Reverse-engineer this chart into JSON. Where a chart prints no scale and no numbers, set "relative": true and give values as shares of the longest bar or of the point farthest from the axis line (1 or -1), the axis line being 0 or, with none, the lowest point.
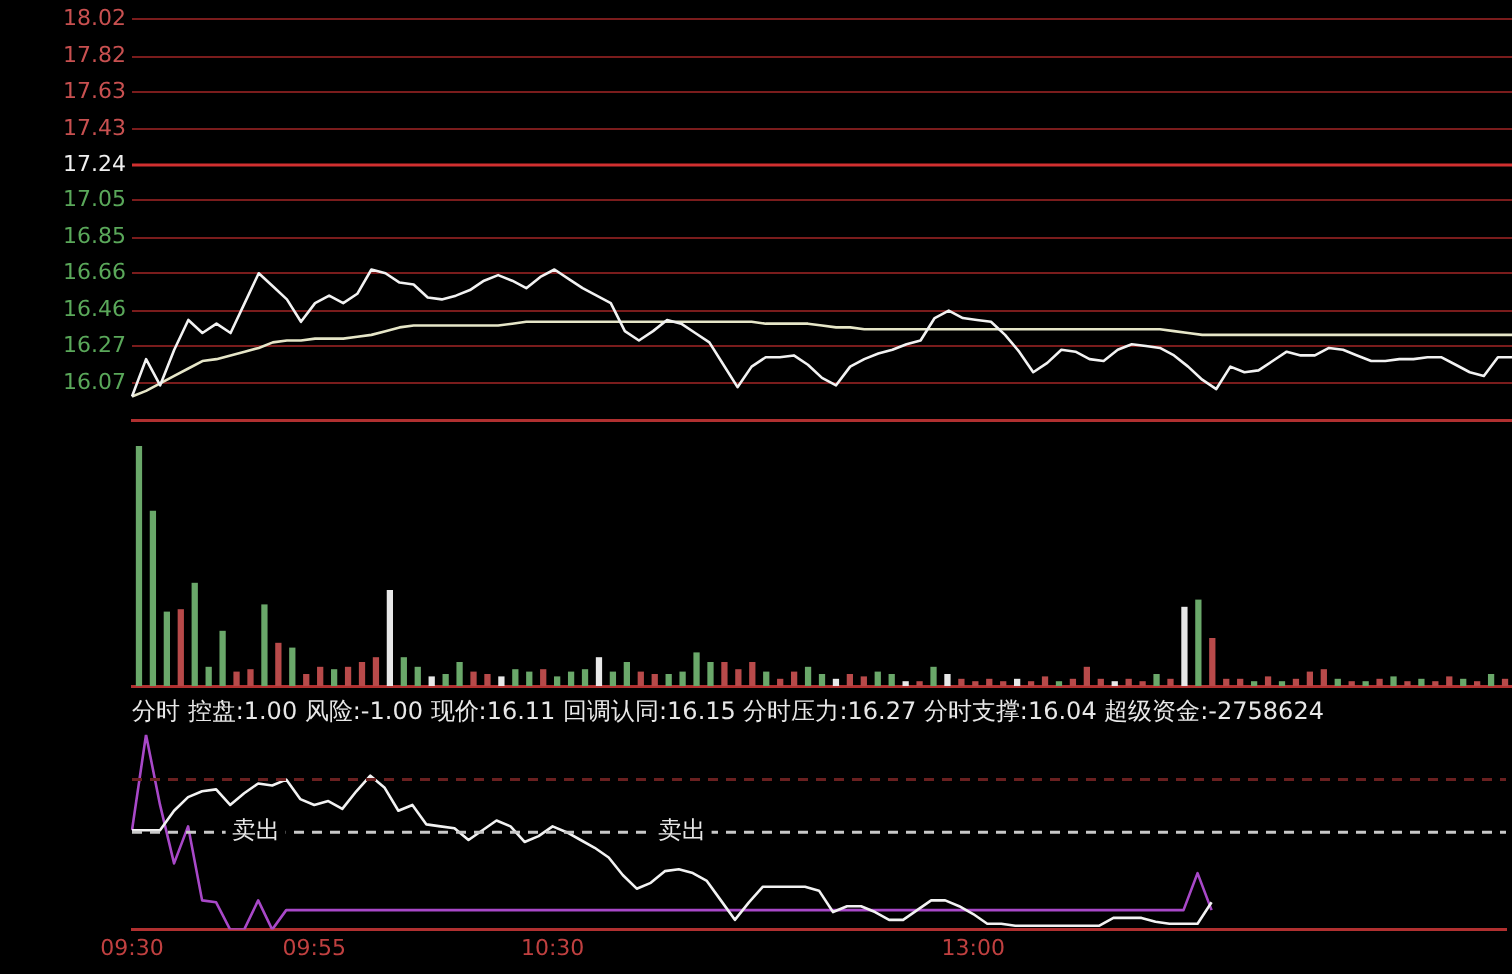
{
  "chart_data": [
    {
      "type": "line",
      "categories": [
        null,
        null,
        null,
        null,
        null,
        null,
        null,
        null,
        null,
        null,
        null,
        null,
        null,
        null,
        null,
        null,
        null,
        null,
        null,
        null,
        null,
        null,
        null,
        null,
        null,
        null,
        null,
        null,
        null,
        null,
        null,
        null,
        null,
        null,
        null,
        null,
        null,
        null,
        null,
        null,
        null,
        null,
        null,
        null,
        null,
        null,
        null,
        null,
        null,
        null,
        null,
        null,
        null,
        null,
        null,
        null,
        null,
        null,
        null,
        null,
        null,
        null,
        null,
        null,
        null,
        null,
        null,
        null,
        null,
        null,
        null,
        null,
        null,
        null,
        null,
        null,
        null,
        null,
        null,
        null,
        null,
        null,
        null,
        null,
        null,
        null,
        null,
        null,
        null,
        null,
        null,
        null,
        null,
        null,
        null,
        null,
        null,
        null,
        null
      ],
      "ylim": [
        15.87,
        18.02
      ],
      "yticks": [
        16.07,
        16.27,
        16.46,
        16.66,
        16.85,
        17.05,
        17.24,
        17.43,
        17.63,
        17.82,
        18.02
      ],
      "tick_labels": "y",
      "grid": "y",
      "ref_lines": [
        {
          "axis": "y",
          "value": 17.24,
          "color": "#d03030"
        }
      ],
      "series": [
        {
          "color": "#f2f2f2",
          "values": [
            16.0,
            16.2,
            16.06,
            16.25,
            16.41,
            16.34,
            16.39,
            16.34,
            16.5,
            16.66,
            16.59,
            16.52,
            16.4,
            16.5,
            16.54,
            16.5,
            16.55,
            16.68,
            16.66,
            16.61,
            16.6,
            16.53,
            16.52,
            16.54,
            16.57,
            16.62,
            16.65,
            16.62,
            16.58,
            16.64,
            16.68,
            16.63,
            16.58,
            16.54,
            16.5,
            16.35,
            16.3,
            16.35,
            16.41,
            16.39,
            16.34,
            16.29,
            16.17,
            16.05,
            16.16,
            16.21,
            16.21,
            16.22,
            16.17,
            16.1,
            16.06,
            16.16,
            16.2,
            16.23,
            16.25,
            16.28,
            16.3,
            16.42,
            16.46,
            16.42,
            16.41,
            16.4,
            16.33,
            16.24,
            16.13,
            16.18,
            16.25,
            16.24,
            16.2,
            16.19,
            16.25,
            16.28,
            16.27,
            16.26,
            16.22,
            16.16,
            16.09,
            16.04,
            16.16,
            16.13,
            16.14,
            16.19,
            16.24,
            16.22,
            16.22,
            16.26,
            16.25,
            16.22,
            16.19,
            16.19,
            16.2,
            16.2,
            16.21,
            16.21,
            16.17,
            16.13,
            16.11,
            16.21,
            16.21
          ]
        },
        {
          "color": "#e6e6c8",
          "values": [
            16.0,
            16.03,
            16.07,
            16.11,
            16.15,
            16.19,
            16.2,
            16.22,
            16.24,
            16.26,
            16.29,
            16.3,
            16.3,
            16.31,
            16.31,
            16.31,
            16.32,
            16.33,
            16.35,
            16.37,
            16.38,
            16.38,
            16.38,
            16.38,
            16.38,
            16.38,
            16.38,
            16.39,
            16.4,
            16.4,
            16.4,
            16.4,
            16.4,
            16.4,
            16.4,
            16.4,
            16.4,
            16.4,
            16.4,
            16.4,
            16.4,
            16.4,
            16.4,
            16.4,
            16.4,
            16.39,
            16.39,
            16.39,
            16.39,
            16.38,
            16.37,
            16.37,
            16.36,
            16.36,
            16.36,
            16.36,
            16.36,
            16.36,
            16.36,
            16.36,
            16.36,
            16.36,
            16.36,
            16.36,
            16.36,
            16.36,
            16.36,
            16.36,
            16.36,
            16.36,
            16.36,
            16.36,
            16.36,
            16.36,
            16.35,
            16.34,
            16.33,
            16.33,
            16.33,
            16.33,
            16.33,
            16.33,
            16.33,
            16.33,
            16.33,
            16.33,
            16.33,
            16.33,
            16.33,
            16.33,
            16.33,
            16.33,
            16.33,
            16.33,
            16.33,
            16.33,
            16.33,
            16.33,
            16.33
          ]
        }
      ]
    },
    {
      "type": "bar",
      "relative": true,
      "tick_labels": false,
      "categories": [
        null,
        null,
        null,
        null,
        null,
        null,
        null,
        null,
        null,
        null,
        null,
        null,
        null,
        null,
        null,
        null,
        null,
        null,
        null,
        null,
        null,
        null,
        null,
        null,
        null,
        null,
        null,
        null,
        null,
        null,
        null,
        null,
        null,
        null,
        null,
        null,
        null,
        null,
        null,
        null,
        null,
        null,
        null,
        null,
        null,
        null,
        null,
        null,
        null,
        null,
        null,
        null,
        null,
        null,
        null,
        null,
        null,
        null,
        null,
        null,
        null,
        null,
        null,
        null,
        null,
        null,
        null,
        null,
        null,
        null,
        null,
        null,
        null,
        null,
        null,
        null,
        null,
        null,
        null,
        null,
        null,
        null,
        null,
        null,
        null,
        null,
        null,
        null,
        null,
        null,
        null,
        null,
        null,
        null,
        null,
        null,
        null,
        null,
        null
      ],
      "values": [
        1.0,
        0.73,
        0.31,
        0.32,
        0.43,
        0.08,
        0.23,
        0.06,
        0.07,
        0.34,
        0.18,
        0.16,
        0.05,
        0.08,
        0.07,
        0.08,
        0.1,
        0.12,
        0.4,
        0.12,
        0.08,
        0.04,
        0.05,
        0.1,
        0.06,
        0.05,
        0.04,
        0.07,
        0.06,
        0.07,
        0.04,
        0.06,
        0.07,
        0.12,
        0.06,
        0.1,
        0.06,
        0.05,
        0.05,
        0.06,
        0.14,
        0.1,
        0.1,
        0.07,
        0.1,
        0.06,
        0.03,
        0.06,
        0.08,
        0.05,
        0.03,
        0.05,
        0.04,
        0.06,
        0.05,
        0.02,
        0.02,
        0.08,
        0.05,
        0.03,
        0.02,
        0.03,
        0.02,
        0.03,
        0.02,
        0.04,
        0.02,
        0.03,
        0.08,
        0.03,
        0.02,
        0.03,
        0.02,
        0.05,
        0.03,
        0.33,
        0.36,
        0.2,
        0.03,
        0.03,
        0.02,
        0.04,
        0.02,
        0.03,
        0.06,
        0.07,
        0.03,
        0.02,
        0.02,
        0.03,
        0.04,
        0.02,
        0.03,
        0.02,
        0.04,
        0.03,
        0.02,
        0.05,
        0.03
      ],
      "colors": [
        "#6aa86a",
        "#6aa86a",
        "#6aa86a",
        "#b84a4a",
        "#6aa86a",
        "#6aa86a",
        "#6aa86a",
        "#b84a4a",
        "#b84a4a",
        "#6aa86a",
        "#b84a4a",
        "#6aa86a",
        "#b84a4a",
        "#b84a4a",
        "#6aa86a",
        "#b84a4a",
        "#b84a4a",
        "#b84a4a",
        "#e8e8e8",
        "#6aa86a",
        "#6aa86a",
        "#e8e8e8",
        "#6aa86a",
        "#6aa86a",
        "#b84a4a",
        "#b84a4a",
        "#e8e8e8",
        "#6aa86a",
        "#6aa86a",
        "#b84a4a",
        "#6aa86a",
        "#6aa86a",
        "#6aa86a",
        "#e8e8e8",
        "#6aa86a",
        "#6aa86a",
        "#b84a4a",
        "#b84a4a",
        "#6aa86a",
        "#6aa86a",
        "#6aa86a",
        "#6aa86a",
        "#b84a4a",
        "#b84a4a",
        "#b84a4a",
        "#6aa86a",
        "#b84a4a",
        "#b84a4a",
        "#6aa86a",
        "#6aa86a",
        "#e8e8e8",
        "#b84a4a",
        "#b84a4a",
        "#6aa86a",
        "#6aa86a",
        "#e8e8e8",
        "#b84a4a",
        "#6aa86a",
        "#e8e8e8",
        "#b84a4a",
        "#b84a4a",
        "#b84a4a",
        "#b84a4a",
        "#e8e8e8",
        "#b84a4a",
        "#b84a4a",
        "#6aa86a",
        "#b84a4a",
        "#b84a4a",
        "#b84a4a",
        "#e8e8e8",
        "#b84a4a",
        "#b84a4a",
        "#6aa86a",
        "#b84a4a",
        "#e8e8e8",
        "#6aa86a",
        "#b84a4a",
        "#b84a4a",
        "#b84a4a",
        "#6aa86a",
        "#b84a4a",
        "#6aa86a",
        "#b84a4a",
        "#b84a4a",
        "#b84a4a",
        "#6aa86a",
        "#b84a4a",
        "#6aa86a",
        "#b84a4a",
        "#6aa86a",
        "#b84a4a",
        "#6aa86a",
        "#b84a4a",
        "#b84a4a",
        "#6aa86a",
        "#b84a4a",
        "#6aa86a",
        "#b84a4a"
      ]
    },
    {
      "type": "line",
      "relative": true,
      "title": "分时 控盘:1.00 风险:-1.00 现价:16.11 回调认同:16.15 分时压力:16.27 分时支撑:16.04 超级资金:-2758624",
      "categories": [
        "09:30",
        null,
        null,
        null,
        null,
        null,
        null,
        null,
        null,
        null,
        null,
        null,
        null,
        "09:55",
        null,
        null,
        null,
        null,
        null,
        null,
        null,
        null,
        null,
        null,
        null,
        null,
        null,
        null,
        null,
        null,
        "10:30",
        null,
        null,
        null,
        null,
        null,
        null,
        null,
        null,
        null,
        null,
        null,
        null,
        null,
        null,
        null,
        null,
        null,
        null,
        null,
        null,
        null,
        null,
        null,
        null,
        null,
        null,
        null,
        null,
        null,
        "13:00",
        null,
        null,
        null,
        null,
        null,
        null,
        null,
        null,
        null,
        null,
        null,
        null,
        null,
        null,
        null,
        null,
        null,
        null,
        null,
        null,
        null,
        null,
        null,
        null,
        null,
        null,
        null,
        null,
        null,
        null,
        null,
        null,
        null,
        null,
        null,
        null,
        null,
        null
      ],
      "tick_labels": "x",
      "ref_lines": [
        {
          "axis": "y",
          "value": 0.5,
          "line_style": "dashed",
          "color": "#c8c8c8",
          "label": "卖出"
        },
        {
          "axis": "y",
          "value": 0.77,
          "line_style": "dashed",
          "color": "#6a2020"
        }
      ],
      "series": [
        {
          "color": "#f2f2f2",
          "values": [
            0.51,
            0.51,
            0.51,
            0.61,
            0.68,
            0.71,
            0.72,
            0.64,
            0.7,
            0.75,
            0.74,
            0.77,
            0.67,
            0.64,
            0.66,
            0.62,
            0.71,
            0.79,
            0.73,
            0.61,
            0.64,
            0.54,
            0.53,
            0.52,
            0.46,
            0.51,
            0.56,
            0.53,
            0.45,
            0.48,
            0.53,
            0.5,
            0.46,
            0.42,
            0.37,
            0.28,
            0.21,
            0.24,
            0.3,
            0.31,
            0.29,
            0.25,
            0.15,
            0.05,
            0.14,
            0.22,
            0.22,
            0.22,
            0.22,
            0.2,
            0.09,
            0.12,
            0.12,
            0.09,
            0.05,
            0.05,
            0.1,
            0.15,
            0.15,
            0.12,
            0.08,
            0.03,
            0.03,
            0.02,
            0.02,
            0.02,
            0.02,
            0.02,
            0.02,
            0.02,
            0.06,
            0.06,
            0.06,
            0.04,
            0.03,
            0.03,
            0.03,
            0.14,
            null,
            null,
            null,
            null,
            null,
            null,
            null,
            null,
            null,
            null,
            null,
            null,
            null,
            null,
            null,
            null,
            null,
            null,
            null,
            null,
            null
          ]
        },
        {
          "color": "#a848c8",
          "values": [
            0.51,
            1,
            0.64,
            0.34,
            0.53,
            0.15,
            0.14,
            0,
            0,
            0.15,
            0,
            0.1,
            0.1,
            0.1,
            0.1,
            0.1,
            0.1,
            0.1,
            0.1,
            0.1,
            0.1,
            0.1,
            0.1,
            0.1,
            0.1,
            0.1,
            0.1,
            0.1,
            0.1,
            0.1,
            0.1,
            0.1,
            0.1,
            0.1,
            0.1,
            0.1,
            0.1,
            0.1,
            0.1,
            0.1,
            0.1,
            0.1,
            0.1,
            0.1,
            0.1,
            0.1,
            0.1,
            0.1,
            0.1,
            0.1,
            0.1,
            0.1,
            0.1,
            0.1,
            0.1,
            0.1,
            0.1,
            0.1,
            0.1,
            0.1,
            0.1,
            0.1,
            0.1,
            0.1,
            0.1,
            0.1,
            0.1,
            0.1,
            0.1,
            0.1,
            0.1,
            0.1,
            0.1,
            0.1,
            0.1,
            0.1,
            0.29,
            0.1,
            null,
            null,
            null,
            null,
            null,
            null,
            null,
            null,
            null,
            null,
            null,
            null,
            null,
            null,
            null,
            null,
            null,
            null,
            null,
            null,
            null
          ]
        }
      ]
    }
  ]
}
